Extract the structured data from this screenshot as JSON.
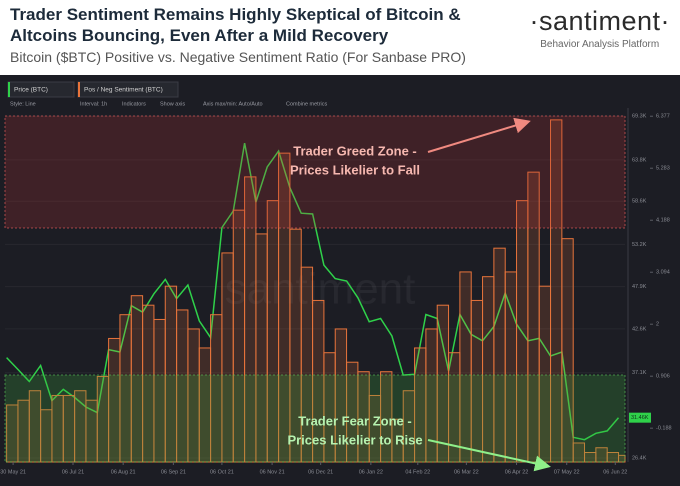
{
  "brand": {
    "name": "·santiment·",
    "tagline": "Behavior Analysis Platform"
  },
  "toolbar": {
    "tabs": [
      "Price (BTC)",
      "Pos / Neg Sentiment (BTC)"
    ],
    "options": [
      "Style: Line",
      "Interval: 1h",
      "Indicators",
      "Show axis",
      "Axis max/min: Auto/Auto",
      "Combine metrics"
    ]
  },
  "chart_data": {
    "type": "line",
    "title": "Trader Sentiment Remains Highly Skeptical of Bitcoin & Altcoins Bouncing, Even After a Mild Recovery",
    "subtitle": "Bitcoin ($BTC) Positive vs. Negative Sentiment Ratio (For Sanbase PRO)",
    "watermark": "santiment",
    "x": [
      "2021-05-26",
      "2021-06-02",
      "2021-06-09",
      "2021-06-16",
      "2021-06-23",
      "2021-06-30",
      "2021-07-07",
      "2021-07-14",
      "2021-07-21",
      "2021-07-28",
      "2021-08-04",
      "2021-08-11",
      "2021-08-18",
      "2021-08-25",
      "2021-09-01",
      "2021-09-08",
      "2021-09-15",
      "2021-09-22",
      "2021-09-29",
      "2021-10-06",
      "2021-10-13",
      "2021-10-20",
      "2021-10-27",
      "2021-11-03",
      "2021-11-10",
      "2021-11-17",
      "2021-11-24",
      "2021-12-01",
      "2021-12-08",
      "2021-12-15",
      "2021-12-22",
      "2021-12-29",
      "2022-01-05",
      "2022-01-12",
      "2022-01-19",
      "2022-01-26",
      "2022-02-02",
      "2022-02-09",
      "2022-02-16",
      "2022-02-23",
      "2022-03-02",
      "2022-03-09",
      "2022-03-16",
      "2022-03-23",
      "2022-03-30",
      "2022-04-06",
      "2022-04-13",
      "2022-04-20",
      "2022-04-27",
      "2022-05-04",
      "2022-05-11",
      "2022-05-18",
      "2022-05-25",
      "2022-06-01",
      "2022-06-08"
    ],
    "series": [
      {
        "name": "Price (BTC)",
        "color": "#2fd14a",
        "axis": "y",
        "values": [
          39000,
          37500,
          36000,
          38000,
          33600,
          35000,
          34000,
          32800,
          32100,
          40000,
          39700,
          45500,
          44700,
          47000,
          48800,
          46400,
          48100,
          43600,
          41500,
          55300,
          57400,
          65900,
          58500,
          62900,
          64900,
          60300,
          57100,
          57000,
          50600,
          48900,
          48600,
          46500,
          43500,
          43900,
          41700,
          36800,
          36900,
          44400,
          43900,
          37300,
          44400,
          41900,
          41100,
          42900,
          47100,
          43200,
          41100,
          41400,
          39200,
          39700,
          29000,
          28700,
          29500,
          29800,
          31460
        ]
      },
      {
        "name": "Pos / Neg Sentiment (BTC)",
        "color": "#e8743b",
        "axis": "y2",
        "values": [
          0.3,
          0.4,
          0.6,
          0.2,
          0.5,
          0.5,
          0.6,
          0.4,
          0.9,
          1.7,
          2.2,
          2.6,
          2.4,
          2.1,
          2.8,
          2.3,
          1.9,
          1.5,
          2.2,
          3.5,
          4.4,
          5.1,
          3.9,
          4.6,
          5.6,
          4.0,
          3.2,
          2.5,
          1.4,
          1.9,
          1.2,
          1.0,
          0.5,
          1.0,
          0.0,
          0.6,
          1.5,
          1.9,
          2.4,
          1.4,
          3.1,
          2.5,
          3.0,
          3.6,
          3.1,
          4.6,
          5.2,
          2.8,
          6.3,
          3.8,
          -0.5,
          -0.7,
          -0.6,
          -0.7,
          -0.76
        ]
      }
    ],
    "xlim": [
      "2021-05-25",
      "2022-06-12"
    ],
    "xticks": [
      {
        "value": "2021-05-30",
        "label": "30 May 21"
      },
      {
        "value": "2021-07-06",
        "label": "06 Jul 21"
      },
      {
        "value": "2021-08-06",
        "label": "06 Aug 21"
      },
      {
        "value": "2021-09-06",
        "label": "06 Sep 21"
      },
      {
        "value": "2021-10-06",
        "label": "06 Oct 21"
      },
      {
        "value": "2021-11-06",
        "label": "06 Nov 21"
      },
      {
        "value": "2021-12-06",
        "label": "06 Dec 21"
      },
      {
        "value": "2022-01-06",
        "label": "06 Jan 22"
      },
      {
        "value": "2022-02-04",
        "label": "04 Feb 22"
      },
      {
        "value": "2022-03-06",
        "label": "06 Mar 22"
      },
      {
        "value": "2022-04-06",
        "label": "06 Apr 22"
      },
      {
        "value": "2022-05-07",
        "label": "07 May 22"
      },
      {
        "value": "2022-06-06",
        "label": "06 Jun 22"
      }
    ],
    "ylim": [
      25900,
      70300
    ],
    "yticks": [
      {
        "value": 69300,
        "label": "69.3K"
      },
      {
        "value": 63800,
        "label": "63.8K"
      },
      {
        "value": 58600,
        "label": "58.6K"
      },
      {
        "value": 53200,
        "label": "53.2K"
      },
      {
        "value": 47900,
        "label": "47.9K"
      },
      {
        "value": 42600,
        "label": "42.6K"
      },
      {
        "value": 37100,
        "label": "37.1K"
      },
      {
        "value": 26400,
        "label": "26.4K"
      }
    ],
    "y2lim": [
      -0.9,
      6.55
    ],
    "y2ticks": [
      6.377,
      5.283,
      4.188,
      3.094,
      2,
      0.906,
      -0.188
    ],
    "price_tag": {
      "value": 31460,
      "label": "31.46K"
    },
    "grid": true,
    "annotations": [
      {
        "lines": [
          "Trader Greed Zone -",
          "Prices Likelier to Fall"
        ],
        "color": "#f6b8b0"
      },
      {
        "lines": [
          "Trader Fear Zone -",
          "Prices Likelier to Rise"
        ],
        "color": "#b6f2b0"
      }
    ]
  }
}
